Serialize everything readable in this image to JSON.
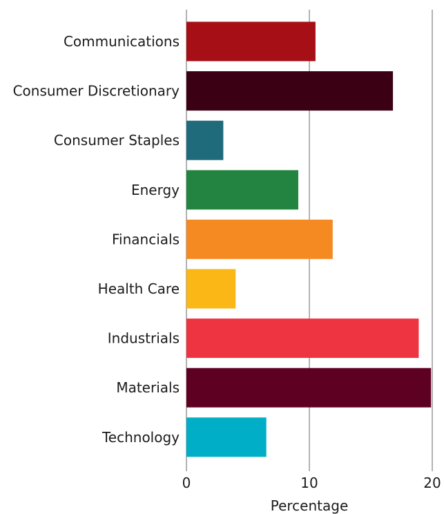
{
  "chart_data": {
    "type": "bar",
    "orientation": "horizontal",
    "title": "",
    "xlabel": "Percentage",
    "ylabel": "",
    "xlim": [
      0,
      20
    ],
    "x_ticks": [
      0,
      10,
      20
    ],
    "x_tick_labels": [
      "0",
      "10",
      "20"
    ],
    "grid": "vertical major gridlines",
    "categories": [
      "Communications",
      "Consumer Discretionary",
      "Consumer Staples",
      "Energy",
      "Financials",
      "Health Care",
      "Industrials",
      "Materials",
      "Technology"
    ],
    "values": [
      10.5,
      16.8,
      3.0,
      9.1,
      11.9,
      4.0,
      18.9,
      19.9,
      6.5
    ],
    "colors": [
      "#a50f15",
      "#3b0014",
      "#1f6b7c",
      "#228440",
      "#f58a22",
      "#fbb715",
      "#ee3440",
      "#5e0022",
      "#00afc7"
    ]
  }
}
